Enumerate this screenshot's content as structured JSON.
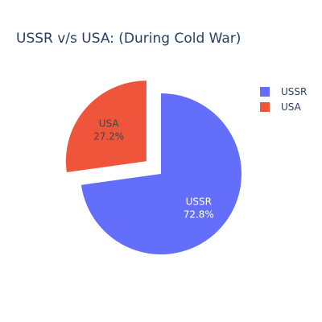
{
  "chart_data": {
    "type": "pie",
    "title": "USSR v/s USA: (During Cold War)",
    "labels": [
      "USSR",
      "USA"
    ],
    "percent_labels": [
      "72.8%",
      "27.2%"
    ],
    "values": [
      72.8,
      27.2
    ],
    "colors": [
      "#636efa",
      "#ef553b"
    ],
    "label_text_colors": [
      "#ffffff",
      "#444444"
    ],
    "pulled_slice": "USA",
    "legend_position": "top-right"
  }
}
